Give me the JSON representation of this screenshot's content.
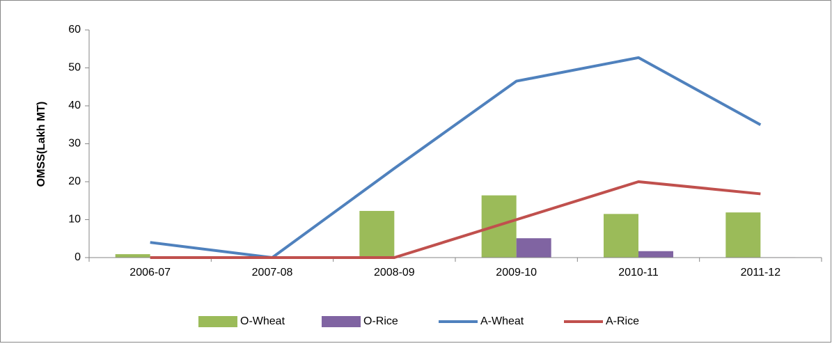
{
  "chart_data": {
    "type": "combo",
    "y_label": "OMSS(Lakh MT)",
    "categories": [
      "2006-07",
      "2007-08",
      "2008-09",
      "2009-10",
      "2010-11",
      "2011-12"
    ],
    "series": [
      {
        "name": "O-Wheat",
        "kind": "bar",
        "color": "#9bbb59",
        "values": [
          0.9,
          0,
          12.3,
          16.4,
          11.5,
          11.9
        ]
      },
      {
        "name": "O-Rice",
        "kind": "bar",
        "color": "#8064a2",
        "values": [
          0,
          0,
          0,
          5.1,
          1.7,
          0.1
        ]
      },
      {
        "name": "A-Wheat",
        "kind": "line",
        "color": "#4f81bd",
        "values": [
          4,
          0,
          23.5,
          46.5,
          52.7,
          35
        ]
      },
      {
        "name": "A-Rice",
        "kind": "line",
        "color": "#c0504d",
        "values": [
          0,
          0,
          0,
          10,
          20,
          16.8
        ]
      }
    ],
    "ylim": [
      0,
      60
    ],
    "yticks": [
      0,
      10,
      20,
      30,
      40,
      50,
      60
    ],
    "grid": false
  }
}
